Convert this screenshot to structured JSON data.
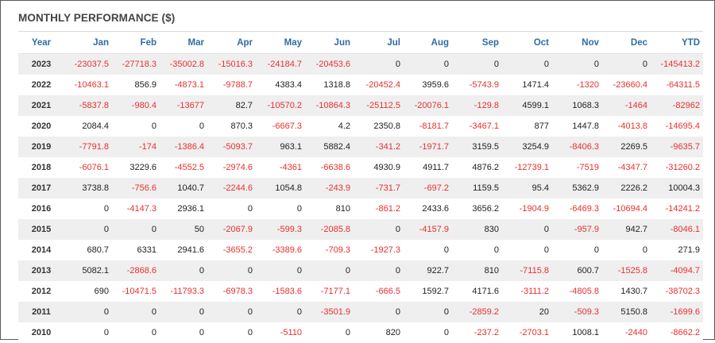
{
  "panel": {
    "title": "MONTHLY PERFORMANCE ($)"
  },
  "table": {
    "columns": [
      "Year",
      "Jan",
      "Feb",
      "Mar",
      "Apr",
      "May",
      "Jun",
      "Jul",
      "Aug",
      "Sep",
      "Oct",
      "Nov",
      "Dec",
      "YTD"
    ],
    "rows": [
      {
        "year": "2023",
        "values": [
          "-23037.5",
          "-27718.3",
          "-35002.8",
          "-15016.3",
          "-24184.7",
          "-20453.6",
          "0",
          "0",
          "0",
          "0",
          "0",
          "0",
          "-145413.2"
        ]
      },
      {
        "year": "2022",
        "values": [
          "-10463.1",
          "856.9",
          "-4873.1",
          "-9788.7",
          "4383.4",
          "1318.8",
          "-20452.4",
          "3959.6",
          "-5743.9",
          "1471.4",
          "-1320",
          "-23660.4",
          "-64311.5"
        ]
      },
      {
        "year": "2021",
        "values": [
          "-5837.8",
          "-980.4",
          "-13677",
          "82.7",
          "-10570.2",
          "-10864.3",
          "-25112.5",
          "-20076.1",
          "-129.8",
          "4599.1",
          "1068.3",
          "-1464",
          "-82962"
        ]
      },
      {
        "year": "2020",
        "values": [
          "2084.4",
          "0",
          "0",
          "870.3",
          "-6667.3",
          "4.2",
          "2350.8",
          "-8181.7",
          "-3467.1",
          "877",
          "1447.8",
          "-4013.8",
          "-14695.4"
        ]
      },
      {
        "year": "2019",
        "values": [
          "-7791.8",
          "-174",
          "-1386.4",
          "-5093.7",
          "963.1",
          "5882.4",
          "-341.2",
          "-1971.7",
          "3159.5",
          "3254.9",
          "-8406.3",
          "2269.5",
          "-9635.7"
        ]
      },
      {
        "year": "2018",
        "values": [
          "-6076.1",
          "3229.6",
          "-4552.5",
          "-2974.6",
          "-4361",
          "-6638.6",
          "4930.9",
          "4911.7",
          "4876.2",
          "-12739.1",
          "-7519",
          "-4347.7",
          "-31260.2"
        ]
      },
      {
        "year": "2017",
        "values": [
          "3738.8",
          "-756.6",
          "1040.7",
          "-2244.6",
          "1054.8",
          "-243.9",
          "-731.7",
          "-697.2",
          "1159.5",
          "95.4",
          "5362.9",
          "2226.2",
          "10004.3"
        ]
      },
      {
        "year": "2016",
        "values": [
          "0",
          "-4147.3",
          "2936.1",
          "0",
          "0",
          "810",
          "-861.2",
          "2433.6",
          "3656.2",
          "-1904.9",
          "-6469.3",
          "-10694.4",
          "-14241.2"
        ]
      },
      {
        "year": "2015",
        "values": [
          "0",
          "0",
          "50",
          "-2067.9",
          "-599.3",
          "-2085.8",
          "0",
          "-4157.9",
          "830",
          "0",
          "-957.9",
          "942.7",
          "-8046.1"
        ]
      },
      {
        "year": "2014",
        "values": [
          "680.7",
          "6331",
          "2941.6",
          "-3655.2",
          "-3389.6",
          "-709.3",
          "-1927.3",
          "0",
          "0",
          "0",
          "0",
          "0",
          "271.9"
        ]
      },
      {
        "year": "2013",
        "values": [
          "5082.1",
          "-2868.6",
          "0",
          "0",
          "0",
          "0",
          "0",
          "922.7",
          "810",
          "-7115.8",
          "600.7",
          "-1525.8",
          "-4094.7"
        ]
      },
      {
        "year": "2012",
        "values": [
          "690",
          "-10471.5",
          "-11793.3",
          "-6978.3",
          "-1583.6",
          "-7177.1",
          "-666.5",
          "1592.7",
          "4171.6",
          "-3111.2",
          "-4805.8",
          "1430.7",
          "-38702.3"
        ]
      },
      {
        "year": "2011",
        "values": [
          "0",
          "0",
          "0",
          "0",
          "0",
          "-3501.9",
          "0",
          "0",
          "-2859.2",
          "20",
          "-509.3",
          "5150.8",
          "-1699.6"
        ]
      },
      {
        "year": "2010",
        "values": [
          "0",
          "0",
          "0",
          "0",
          "-5110",
          "0",
          "820",
          "0",
          "-237.2",
          "-2703.1",
          "1008.1",
          "-2440",
          "-8662.2"
        ]
      }
    ]
  },
  "colors": {
    "header_text": "#2e6da4",
    "negative": "#e8302f",
    "positive": "#222222",
    "stripe": "#efefef"
  }
}
